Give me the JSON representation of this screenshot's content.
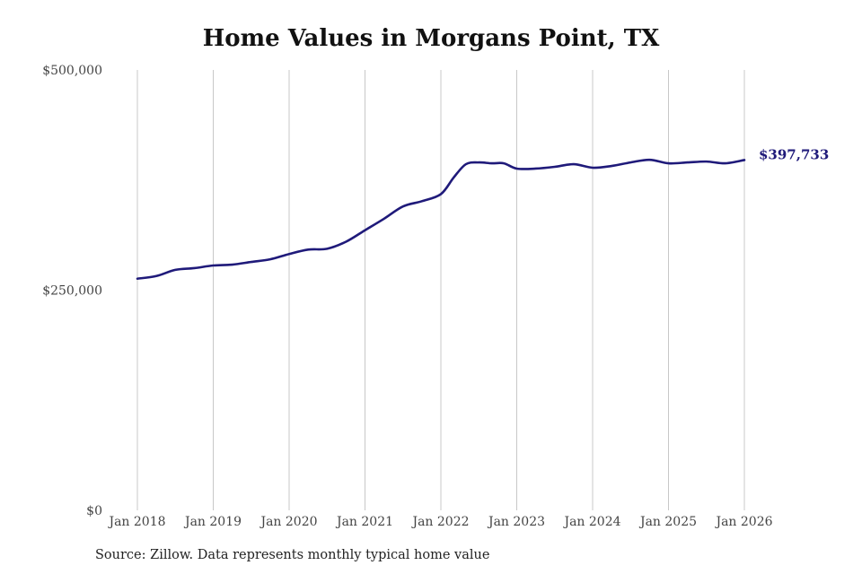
{
  "chart_data": {
    "type": "line",
    "title": "Home Values in Morgans Point, TX",
    "xlabel": "",
    "ylabel": "",
    "ylim": [
      0,
      500000
    ],
    "y_ticks": [
      {
        "value": 0,
        "label": "$0"
      },
      {
        "value": 250000,
        "label": "$250,000"
      },
      {
        "value": 500000,
        "label": "$500,000"
      }
    ],
    "x_ticks": [
      {
        "value": 2018,
        "label": "Jan 2018"
      },
      {
        "value": 2019,
        "label": "Jan 2019"
      },
      {
        "value": 2020,
        "label": "Jan 2020"
      },
      {
        "value": 2021,
        "label": "Jan 2021"
      },
      {
        "value": 2022,
        "label": "Jan 2022"
      },
      {
        "value": 2023,
        "label": "Jan 2023"
      },
      {
        "value": 2024,
        "label": "Jan 2024"
      },
      {
        "value": 2025,
        "label": "Jan 2025"
      },
      {
        "value": 2026,
        "label": "Jan 2026"
      }
    ],
    "grid": "vertical",
    "line_color": "#1f1a7a",
    "series": [
      {
        "x": [
          2018.0,
          2018.25,
          2018.5,
          2018.75,
          2019.0,
          2019.25,
          2019.5,
          2019.75,
          2020.0,
          2020.25,
          2020.5,
          2020.75,
          2021.0,
          2021.25,
          2021.5,
          2021.75,
          2022.0,
          2022.17,
          2022.33,
          2022.5,
          2022.67,
          2022.83,
          2023.0,
          2023.25,
          2023.5,
          2023.75,
          2024.0,
          2024.25,
          2024.5,
          2024.75,
          2025.0,
          2025.25,
          2025.5,
          2025.75,
          2026.0
        ],
        "y": [
          263000,
          266000,
          273000,
          275000,
          278000,
          279000,
          282000,
          285000,
          291000,
          296000,
          297000,
          305000,
          318000,
          331000,
          345000,
          351000,
          359000,
          378000,
          393000,
          395000,
          394000,
          394000,
          388000,
          388000,
          390000,
          393000,
          389000,
          391000,
          395000,
          398000,
          394000,
          395000,
          396000,
          394000,
          397733
        ]
      }
    ],
    "end_label": "$397,733",
    "source": "Source: Zillow. Data represents monthly typical home value"
  }
}
